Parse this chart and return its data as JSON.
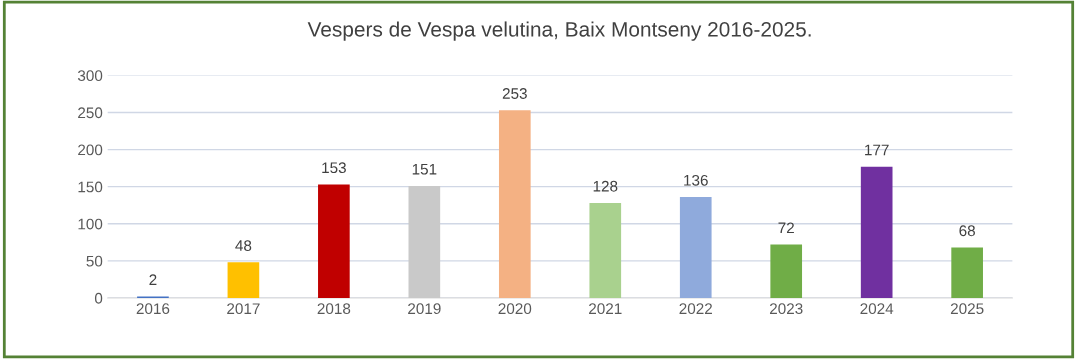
{
  "chart_data": {
    "type": "bar",
    "title": "Vespers de Vespa velutina, Baix Montseny 2016-2025.",
    "categories": [
      "2016",
      "2017",
      "2018",
      "2019",
      "2020",
      "2021",
      "2022",
      "2023",
      "2024",
      "2025"
    ],
    "values": [
      2,
      48,
      153,
      151,
      253,
      128,
      136,
      72,
      177,
      68
    ],
    "colors": [
      "#4472c4",
      "#ffc000",
      "#c00000",
      "#c9c9c9",
      "#f4b183",
      "#a9d18e",
      "#8faadc",
      "#70ad47",
      "#7030a0",
      "#70ad47"
    ],
    "ylim": [
      0,
      300
    ],
    "yticks": [
      0,
      50,
      100,
      150,
      200,
      250,
      300
    ],
    "grid": "y",
    "data_labels": true,
    "legend": false
  }
}
